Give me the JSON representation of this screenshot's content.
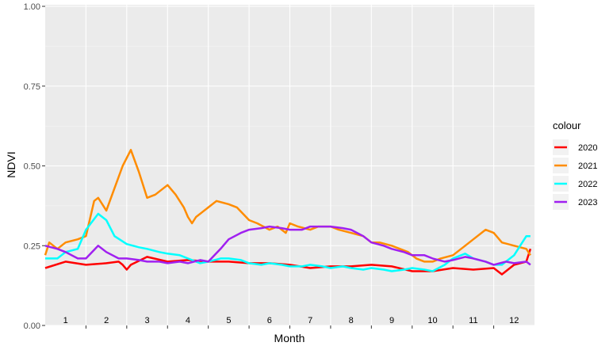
{
  "chart_data": {
    "type": "line",
    "title": "",
    "xlabel": "Month",
    "ylabel": "NDVI",
    "ylim": [
      0,
      1
    ],
    "xlim": [
      0.5,
      12.5
    ],
    "y_ticks": [
      "0.00",
      "0.25",
      "0.50",
      "0.75",
      "1.00"
    ],
    "y_tick_values": [
      0,
      0.25,
      0.5,
      0.75,
      1.0
    ],
    "month_labels": [
      "1",
      "2",
      "3",
      "4",
      "5",
      "6",
      "7",
      "8",
      "9",
      "10",
      "11",
      "12"
    ],
    "grid": true,
    "legend": {
      "title": "colour",
      "position": "right"
    },
    "series": [
      {
        "name": "2020",
        "color": "#ff0000",
        "x": [
          0.5,
          1.0,
          1.5,
          2.0,
          2.3,
          2.4,
          2.5,
          2.6,
          3.0,
          3.5,
          4.0,
          4.5,
          5.0,
          5.5,
          6.0,
          6.5,
          7.0,
          7.5,
          8.0,
          8.5,
          9.0,
          9.5,
          10.0,
          10.5,
          11.0,
          11.5,
          11.7,
          12.0,
          12.3,
          12.4
        ],
        "y": [
          0.18,
          0.2,
          0.19,
          0.195,
          0.2,
          0.19,
          0.175,
          0.19,
          0.215,
          0.2,
          0.205,
          0.2,
          0.2,
          0.195,
          0.195,
          0.19,
          0.18,
          0.185,
          0.185,
          0.19,
          0.185,
          0.17,
          0.17,
          0.18,
          0.175,
          0.18,
          0.16,
          0.19,
          0.2,
          0.24
        ]
      },
      {
        "name": "2021",
        "color": "#ff8c00",
        "x": [
          0.5,
          0.6,
          0.8,
          1.0,
          1.3,
          1.5,
          1.7,
          1.8,
          2.0,
          2.2,
          2.4,
          2.6,
          2.8,
          3.0,
          3.2,
          3.5,
          3.7,
          3.9,
          4.0,
          4.1,
          4.2,
          4.5,
          4.7,
          5.0,
          5.2,
          5.5,
          5.7,
          6.0,
          6.2,
          6.4,
          6.5,
          6.7,
          7.0,
          7.2,
          7.5,
          7.7,
          8.0,
          8.3,
          8.5,
          8.7,
          9.0,
          9.2,
          9.4,
          9.6,
          9.8,
          10.0,
          10.2,
          10.5,
          10.8,
          11.0,
          11.3,
          11.5,
          11.7,
          12.0,
          12.3,
          12.4
        ],
        "y": [
          0.22,
          0.26,
          0.24,
          0.26,
          0.27,
          0.28,
          0.39,
          0.4,
          0.36,
          0.43,
          0.5,
          0.55,
          0.48,
          0.4,
          0.41,
          0.44,
          0.41,
          0.37,
          0.34,
          0.32,
          0.34,
          0.37,
          0.39,
          0.38,
          0.37,
          0.33,
          0.32,
          0.3,
          0.31,
          0.29,
          0.32,
          0.31,
          0.3,
          0.31,
          0.31,
          0.3,
          0.29,
          0.28,
          0.26,
          0.26,
          0.25,
          0.24,
          0.23,
          0.21,
          0.2,
          0.2,
          0.21,
          0.22,
          0.25,
          0.27,
          0.3,
          0.29,
          0.26,
          0.25,
          0.24,
          0.22
        ]
      },
      {
        "name": "2022",
        "color": "#00ffff",
        "x": [
          0.5,
          0.8,
          1.0,
          1.3,
          1.5,
          1.8,
          2.0,
          2.2,
          2.5,
          2.8,
          3.0,
          3.3,
          3.5,
          3.8,
          4.0,
          4.3,
          4.5,
          4.8,
          5.0,
          5.3,
          5.5,
          5.8,
          6.0,
          6.3,
          6.5,
          6.8,
          7.0,
          7.3,
          7.5,
          7.8,
          8.0,
          8.3,
          8.5,
          8.8,
          9.0,
          9.3,
          9.5,
          9.8,
          10.0,
          10.3,
          10.5,
          10.8,
          11.0,
          11.3,
          11.5,
          11.7,
          12.0,
          12.3,
          12.4
        ],
        "y": [
          0.21,
          0.21,
          0.23,
          0.24,
          0.3,
          0.35,
          0.33,
          0.28,
          0.255,
          0.245,
          0.24,
          0.23,
          0.225,
          0.22,
          0.21,
          0.195,
          0.2,
          0.21,
          0.21,
          0.205,
          0.195,
          0.19,
          0.195,
          0.19,
          0.185,
          0.185,
          0.19,
          0.185,
          0.18,
          0.185,
          0.18,
          0.175,
          0.18,
          0.175,
          0.17,
          0.175,
          0.18,
          0.175,
          0.17,
          0.19,
          0.21,
          0.225,
          0.21,
          0.2,
          0.19,
          0.19,
          0.22,
          0.28,
          0.28
        ]
      },
      {
        "name": "2023",
        "color": "#a020f0",
        "x": [
          0.5,
          0.8,
          1.0,
          1.3,
          1.5,
          1.8,
          2.0,
          2.3,
          2.5,
          2.8,
          3.0,
          3.3,
          3.5,
          3.8,
          4.0,
          4.3,
          4.5,
          4.8,
          5.0,
          5.3,
          5.5,
          5.8,
          6.0,
          6.3,
          6.5,
          6.8,
          7.0,
          7.3,
          7.5,
          7.8,
          8.0,
          8.3,
          8.5,
          8.8,
          9.0,
          9.3,
          9.5,
          9.8,
          10.0,
          10.3,
          10.5,
          10.8,
          11.0,
          11.3,
          11.5,
          11.8,
          12.0,
          12.3,
          12.4
        ],
        "y": [
          0.25,
          0.24,
          0.23,
          0.21,
          0.21,
          0.25,
          0.23,
          0.21,
          0.21,
          0.205,
          0.2,
          0.2,
          0.195,
          0.2,
          0.195,
          0.205,
          0.2,
          0.24,
          0.27,
          0.29,
          0.3,
          0.305,
          0.31,
          0.305,
          0.3,
          0.3,
          0.31,
          0.31,
          0.31,
          0.305,
          0.3,
          0.28,
          0.26,
          0.25,
          0.24,
          0.23,
          0.22,
          0.22,
          0.21,
          0.2,
          0.205,
          0.215,
          0.21,
          0.2,
          0.19,
          0.2,
          0.195,
          0.2,
          0.19
        ]
      }
    ]
  }
}
